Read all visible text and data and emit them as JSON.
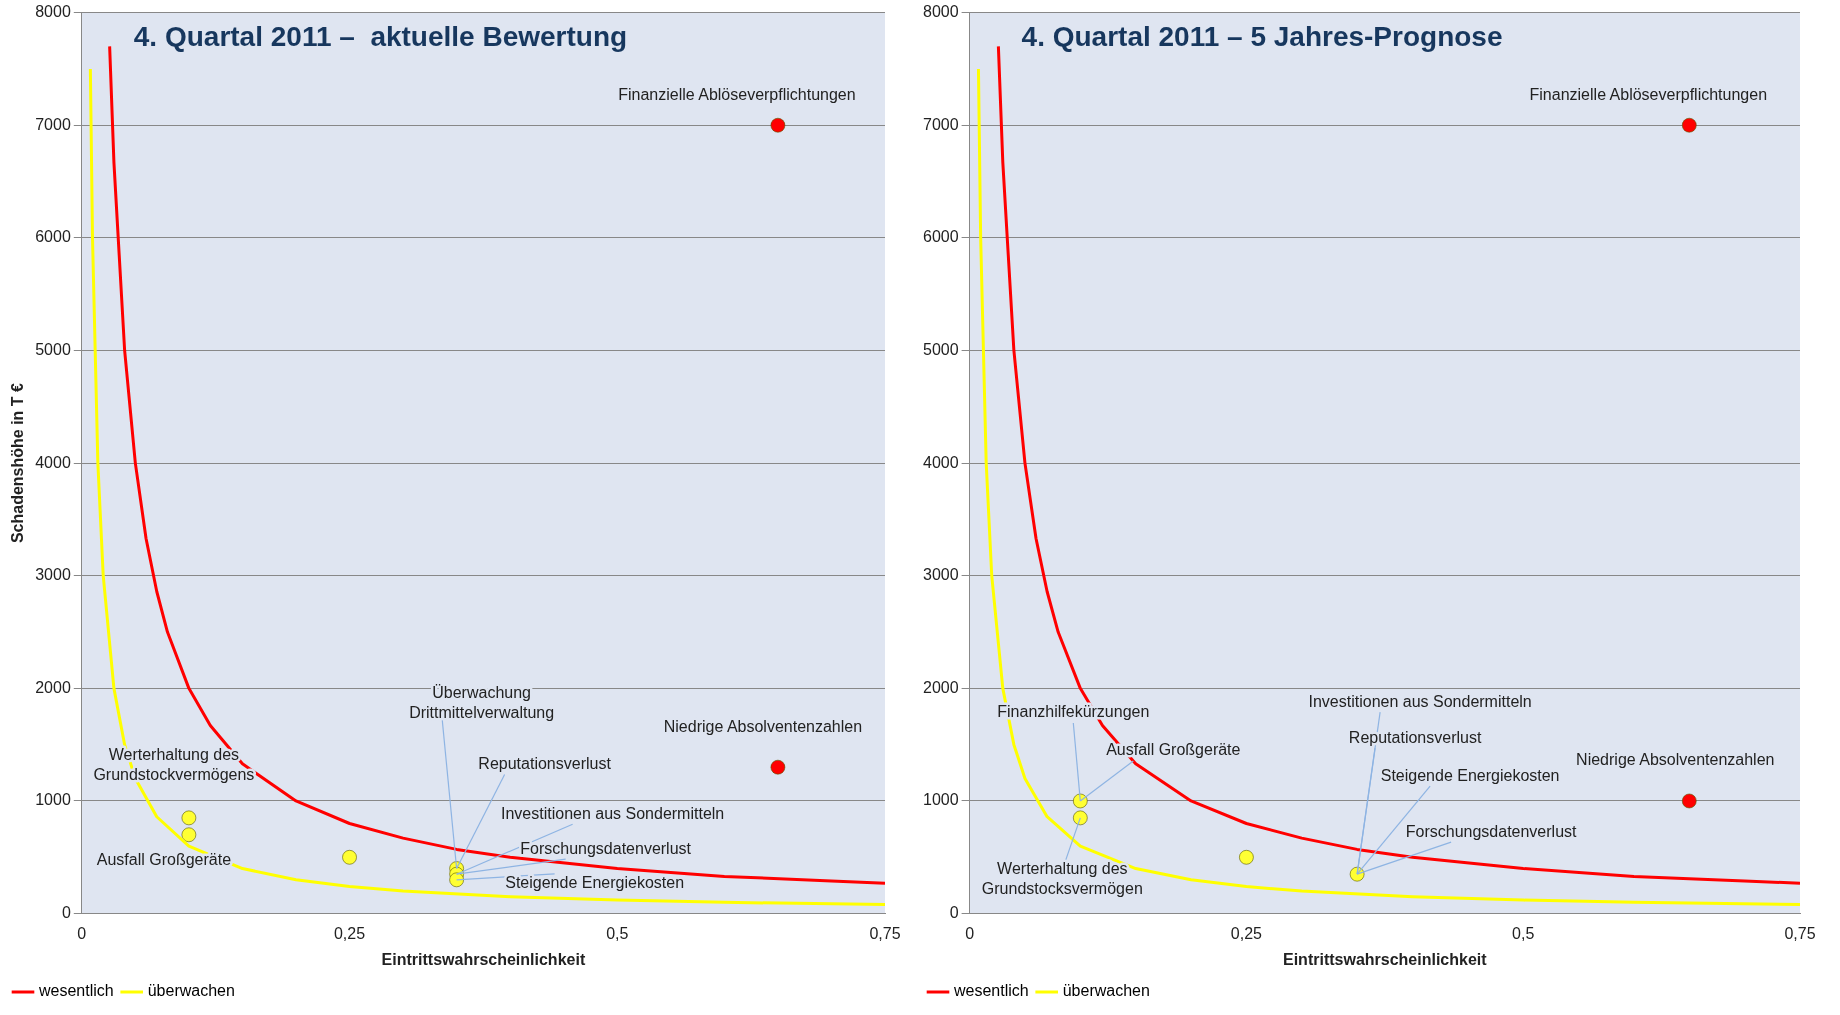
{
  "chart_data": [
    {
      "type": "scatter",
      "title": "4. Quartal 2011 –  aktuelle Bewertung",
      "xlabel": "Eintrittswahrscheinlichkeit",
      "ylabel": "Schadenshöhe in T €",
      "xlim": [
        0,
        0.75
      ],
      "ylim": [
        0,
        8000
      ],
      "xticks": [
        0,
        {
          "value": 0.25,
          "label": "0,25"
        },
        {
          "value": 0.5,
          "label": "0,5"
        },
        {
          "value": 0.75,
          "label": "0,75"
        }
      ],
      "yticks": [
        0,
        1000,
        2000,
        3000,
        4000,
        5000,
        6000,
        7000,
        8000
      ],
      "grid": "y",
      "legend": "bottom left",
      "series": [
        {
          "name": "wesentlich",
          "type": "line",
          "marker": "none",
          "line_style": "solid",
          "color": "#ff0000",
          "x": [
            0.026,
            0.03,
            0.04,
            0.05,
            0.06,
            0.07,
            0.08,
            0.1,
            0.12,
            0.15,
            0.2,
            0.25,
            0.3,
            0.35,
            0.4,
            0.5,
            0.6,
            0.7,
            0.75
          ],
          "values": [
            7700,
            6670,
            5000,
            4000,
            3330,
            2860,
            2500,
            2000,
            1670,
            1330,
            1000,
            800,
            670,
            570,
            500,
            400,
            330,
            290,
            270
          ]
        },
        {
          "name": "überwachen",
          "type": "line",
          "marker": "none",
          "line_style": "solid",
          "color": "#ffff00",
          "x": [
            0.008,
            0.01,
            0.015,
            0.02,
            0.03,
            0.04,
            0.05,
            0.07,
            0.1,
            0.15,
            0.2,
            0.25,
            0.3,
            0.4,
            0.5,
            0.6,
            0.75
          ],
          "values": [
            7500,
            6000,
            4000,
            3000,
            2000,
            1500,
            1200,
            860,
            600,
            400,
            300,
            240,
            200,
            150,
            120,
            100,
            80
          ]
        },
        {
          "type": "scatter",
          "marker": "circle",
          "color": "#ffff33",
          "x": [
            0.1,
            0.1,
            0.25,
            0.35,
            0.35,
            0.35
          ],
          "values": [
            850,
            700,
            500,
            400,
            350,
            300
          ]
        },
        {
          "type": "scatter",
          "marker": "circle",
          "color": "#ff0000",
          "x": [
            0.65,
            0.65
          ],
          "values": [
            7000,
            1300
          ]
        }
      ],
      "annotations": [
        {
          "text": "Werterhaltung des\nGrundstockvermögens",
          "x": 0.1,
          "y": 850
        },
        {
          "text": "Ausfall Großgeräte",
          "x": 0.1,
          "y": 700
        },
        {
          "text": "Überwachung\nDrittmittelverwaltung",
          "x": 0.35,
          "y": 400
        },
        {
          "text": "Reputationsverlust",
          "x": 0.35,
          "y": 400
        },
        {
          "text": "Investitionen aus Sondermitteln",
          "x": 0.35,
          "y": 350
        },
        {
          "text": "Forschungsdatenverlust",
          "x": 0.35,
          "y": 350
        },
        {
          "text": "Steigende Energiekosten",
          "x": 0.35,
          "y": 300
        },
        {
          "text": "Finanzielle Ablöseverpflichtungen",
          "x": 0.65,
          "y": 7000
        },
        {
          "text": "Niedrige Absolventenzahlen",
          "x": 0.65,
          "y": 1300
        }
      ]
    },
    {
      "type": "scatter",
      "title": "4. Quartal 2011 – 5 Jahres-Prognose",
      "xlabel": "Eintrittswahrscheinlichkeit",
      "xlim": [
        0,
        0.75
      ],
      "ylim": [
        0,
        8000
      ],
      "xticks": [
        0,
        {
          "value": 0.25,
          "label": "0,25"
        },
        {
          "value": 0.5,
          "label": "0,5"
        },
        {
          "value": 0.75,
          "label": "0,75"
        }
      ],
      "yticks": [
        0,
        1000,
        2000,
        3000,
        4000,
        5000,
        6000,
        7000,
        8000
      ],
      "grid": "y",
      "legend": "bottom left",
      "series": [
        {
          "name": "wesentlich",
          "type": "line",
          "marker": "none",
          "line_style": "solid",
          "color": "#ff0000",
          "x": [
            0.026,
            0.03,
            0.04,
            0.05,
            0.06,
            0.07,
            0.08,
            0.1,
            0.12,
            0.15,
            0.2,
            0.25,
            0.3,
            0.35,
            0.4,
            0.5,
            0.6,
            0.7,
            0.75
          ],
          "values": [
            7700,
            6670,
            5000,
            4000,
            3330,
            2860,
            2500,
            2000,
            1670,
            1330,
            1000,
            800,
            670,
            570,
            500,
            400,
            330,
            290,
            270
          ]
        },
        {
          "name": "überwachen",
          "type": "line",
          "marker": "none",
          "line_style": "solid",
          "color": "#ffff00",
          "x": [
            0.008,
            0.01,
            0.015,
            0.02,
            0.03,
            0.04,
            0.05,
            0.07,
            0.1,
            0.15,
            0.2,
            0.25,
            0.3,
            0.4,
            0.5,
            0.6,
            0.75
          ],
          "values": [
            7500,
            6000,
            4000,
            3000,
            2000,
            1500,
            1200,
            860,
            600,
            400,
            300,
            240,
            200,
            150,
            120,
            100,
            80
          ]
        },
        {
          "type": "scatter",
          "marker": "circle",
          "color": "#ffff33",
          "x": [
            0.1,
            0.1,
            0.25,
            0.35
          ],
          "values": [
            1000,
            850,
            500,
            350
          ]
        },
        {
          "type": "scatter",
          "marker": "circle",
          "color": "#ff0000",
          "x": [
            0.65,
            0.65
          ],
          "values": [
            7000,
            1000
          ]
        }
      ],
      "annotations": [
        {
          "text": "Finanzhilfekürzungen",
          "x": 0.1,
          "y": 1000
        },
        {
          "text": "Ausfall Großgeräte",
          "x": 0.1,
          "y": 1000
        },
        {
          "text": "Werterhaltung des\nGrundstocksvermögen",
          "x": 0.1,
          "y": 850
        },
        {
          "text": "Investitionen aus Sondermitteln",
          "x": 0.35,
          "y": 350
        },
        {
          "text": "Reputationsverlust",
          "x": 0.35,
          "y": 350
        },
        {
          "text": "Steigende Energiekosten",
          "x": 0.35,
          "y": 350
        },
        {
          "text": "Forschungsdatenverlust",
          "x": 0.35,
          "y": 350
        },
        {
          "text": "Finanzielle Ablöseverpflichtungen",
          "x": 0.65,
          "y": 7000
        },
        {
          "text": "Niedrige Absolventenzahlen",
          "x": 0.65,
          "y": 1000
        }
      ]
    }
  ]
}
